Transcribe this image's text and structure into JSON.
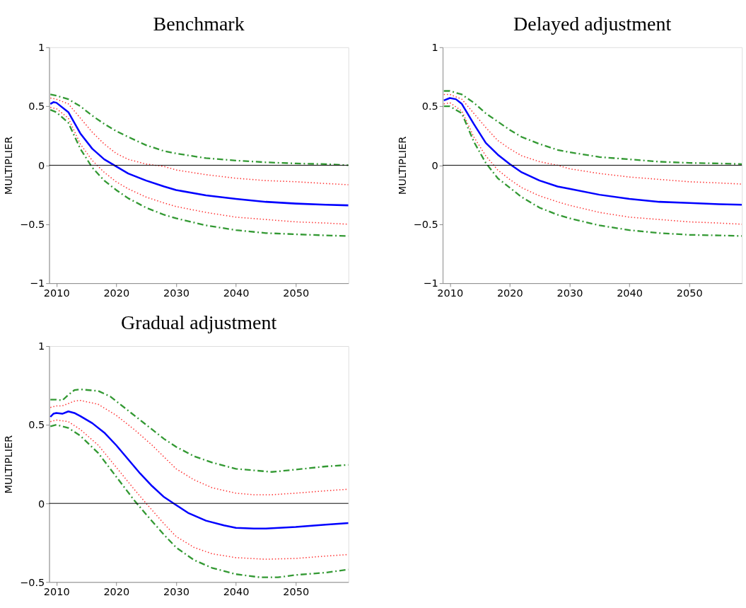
{
  "chart_data": [
    {
      "type": "line",
      "title": "Benchmark",
      "ylabel": "MULTIPLIER",
      "xlim": [
        2008.8,
        2058.8
      ],
      "ylim": [
        -1,
        1
      ],
      "xticks": [
        2010,
        2020,
        2030,
        2040,
        2050
      ],
      "yticks": [
        -1,
        -0.5,
        0,
        0.5,
        1
      ],
      "grid": false,
      "ref_lines": [
        {
          "axis": "y",
          "value": 0,
          "color": "#000000"
        }
      ],
      "series": [
        {
          "color": "#339933",
          "line_style": "dashed",
          "x": [
            2009,
            2010,
            2012,
            2014,
            2016,
            2018,
            2020,
            2022,
            2025,
            2028,
            2030,
            2035,
            2040,
            2045,
            2050,
            2055,
            2058.8
          ],
          "values": [
            0.6,
            0.59,
            0.56,
            0.5,
            0.42,
            0.35,
            0.29,
            0.24,
            0.17,
            0.12,
            0.1,
            0.06,
            0.04,
            0.025,
            0.015,
            0.01,
            0.0
          ]
        },
        {
          "color": "#ff3333",
          "line_style": "dotted",
          "x": [
            2009,
            2010,
            2012,
            2014,
            2016,
            2018,
            2020,
            2022,
            2025,
            2028,
            2030,
            2035,
            2040,
            2045,
            2050,
            2055,
            2058.8
          ],
          "values": [
            0.57,
            0.56,
            0.52,
            0.4,
            0.28,
            0.18,
            0.1,
            0.05,
            0.01,
            -0.01,
            -0.04,
            -0.08,
            -0.11,
            -0.13,
            -0.14,
            -0.155,
            -0.165
          ]
        },
        {
          "color": "#0000ff",
          "line_style": "solid",
          "x": [
            2009,
            2009.5,
            2010,
            2012,
            2014,
            2016,
            2018,
            2020,
            2022,
            2025,
            2028,
            2030,
            2035,
            2040,
            2045,
            2050,
            2055,
            2058.8
          ],
          "values": [
            0.52,
            0.535,
            0.53,
            0.45,
            0.27,
            0.14,
            0.05,
            -0.01,
            -0.07,
            -0.13,
            -0.18,
            -0.21,
            -0.255,
            -0.285,
            -0.31,
            -0.325,
            -0.335,
            -0.34
          ]
        },
        {
          "color": "#ff3333",
          "line_style": "dotted",
          "x": [
            2009,
            2010,
            2012,
            2014,
            2016,
            2018,
            2020,
            2022,
            2025,
            2028,
            2030,
            2035,
            2040,
            2045,
            2050,
            2055,
            2058.8
          ],
          "values": [
            0.49,
            0.48,
            0.4,
            0.18,
            0.04,
            -0.06,
            -0.14,
            -0.2,
            -0.27,
            -0.32,
            -0.35,
            -0.4,
            -0.44,
            -0.46,
            -0.48,
            -0.49,
            -0.5
          ]
        },
        {
          "color": "#339933",
          "line_style": "dashed",
          "x": [
            2009,
            2010,
            2012,
            2014,
            2016,
            2018,
            2020,
            2022,
            2025,
            2028,
            2030,
            2035,
            2040,
            2045,
            2050,
            2055,
            2058.8
          ],
          "values": [
            0.47,
            0.45,
            0.36,
            0.14,
            -0.02,
            -0.13,
            -0.21,
            -0.28,
            -0.36,
            -0.42,
            -0.45,
            -0.51,
            -0.55,
            -0.575,
            -0.585,
            -0.595,
            -0.6
          ]
        }
      ]
    },
    {
      "type": "line",
      "title": "Delayed adjustment",
      "ylabel": "MULTIPLIER",
      "xlim": [
        2008.8,
        2058.8
      ],
      "ylim": [
        -1,
        1
      ],
      "xticks": [
        2010,
        2020,
        2030,
        2040,
        2050
      ],
      "yticks": [
        -1,
        -0.5,
        0,
        0.5,
        1
      ],
      "grid": false,
      "ref_lines": [
        {
          "axis": "y",
          "value": 0,
          "color": "#000000"
        }
      ],
      "series": [
        {
          "color": "#339933",
          "line_style": "dashed",
          "x": [
            2009,
            2010,
            2012,
            2014,
            2016,
            2018,
            2020,
            2022,
            2025,
            2028,
            2030,
            2035,
            2040,
            2045,
            2050,
            2055,
            2058.8
          ],
          "values": [
            0.63,
            0.63,
            0.6,
            0.53,
            0.44,
            0.37,
            0.3,
            0.24,
            0.18,
            0.13,
            0.11,
            0.07,
            0.05,
            0.03,
            0.02,
            0.015,
            0.01
          ]
        },
        {
          "color": "#ff3333",
          "line_style": "dotted",
          "x": [
            2009,
            2010,
            2012,
            2014,
            2016,
            2018,
            2020,
            2022,
            2025,
            2028,
            2030,
            2035,
            2040,
            2045,
            2050,
            2055,
            2058.8
          ],
          "values": [
            0.6,
            0.6,
            0.56,
            0.44,
            0.32,
            0.21,
            0.14,
            0.08,
            0.03,
            0.0,
            -0.03,
            -0.07,
            -0.1,
            -0.12,
            -0.14,
            -0.15,
            -0.16
          ]
        },
        {
          "color": "#0000ff",
          "line_style": "solid",
          "x": [
            2009,
            2010,
            2011,
            2012,
            2014,
            2016,
            2018,
            2020,
            2022,
            2025,
            2028,
            2030,
            2035,
            2040,
            2045,
            2050,
            2055,
            2058.8
          ],
          "values": [
            0.55,
            0.57,
            0.56,
            0.52,
            0.35,
            0.19,
            0.09,
            0.01,
            -0.06,
            -0.13,
            -0.18,
            -0.2,
            -0.25,
            -0.285,
            -0.31,
            -0.32,
            -0.33,
            -0.335
          ]
        },
        {
          "color": "#ff3333",
          "line_style": "dotted",
          "x": [
            2009,
            2010,
            2012,
            2014,
            2016,
            2018,
            2020,
            2022,
            2025,
            2028,
            2030,
            2035,
            2040,
            2045,
            2050,
            2055,
            2058.8
          ],
          "values": [
            0.52,
            0.53,
            0.46,
            0.24,
            0.08,
            -0.04,
            -0.12,
            -0.19,
            -0.26,
            -0.31,
            -0.34,
            -0.4,
            -0.44,
            -0.46,
            -0.48,
            -0.49,
            -0.5
          ]
        },
        {
          "color": "#339933",
          "line_style": "dashed",
          "x": [
            2009,
            2010,
            2012,
            2014,
            2016,
            2018,
            2020,
            2022,
            2025,
            2028,
            2030,
            2035,
            2040,
            2045,
            2050,
            2055,
            2058.8
          ],
          "values": [
            0.5,
            0.5,
            0.44,
            0.2,
            0.02,
            -0.11,
            -0.19,
            -0.27,
            -0.36,
            -0.42,
            -0.45,
            -0.51,
            -0.55,
            -0.575,
            -0.59,
            -0.595,
            -0.6
          ]
        }
      ]
    },
    {
      "type": "line",
      "title": "Gradual adjustment",
      "ylabel": "MULTIPLIER",
      "xlim": [
        2008.8,
        2058.8
      ],
      "ylim": [
        -0.5,
        1
      ],
      "xticks": [
        2010,
        2020,
        2030,
        2040,
        2050
      ],
      "yticks": [
        -0.5,
        0,
        0.5,
        1
      ],
      "grid": false,
      "ref_lines": [
        {
          "axis": "y",
          "value": 0,
          "color": "#000000"
        }
      ],
      "series": [
        {
          "color": "#339933",
          "line_style": "dashed",
          "x": [
            2009,
            2010,
            2011,
            2012,
            2013,
            2014,
            2017,
            2019,
            2022,
            2025,
            2028,
            2030,
            2033,
            2036,
            2040,
            2043,
            2046,
            2050,
            2055,
            2058.8
          ],
          "values": [
            0.66,
            0.66,
            0.655,
            0.69,
            0.72,
            0.725,
            0.715,
            0.68,
            0.59,
            0.5,
            0.41,
            0.36,
            0.3,
            0.26,
            0.22,
            0.21,
            0.2,
            0.215,
            0.235,
            0.245
          ]
        },
        {
          "color": "#ff3333",
          "line_style": "dotted",
          "x": [
            2009,
            2010,
            2011,
            2013,
            2014,
            2017,
            2020,
            2023,
            2026,
            2030,
            2033,
            2036,
            2040,
            2043,
            2046,
            2050,
            2055,
            2058.8
          ],
          "values": [
            0.61,
            0.62,
            0.62,
            0.65,
            0.655,
            0.63,
            0.56,
            0.47,
            0.37,
            0.22,
            0.15,
            0.1,
            0.065,
            0.055,
            0.055,
            0.065,
            0.08,
            0.09
          ]
        },
        {
          "color": "#0000ff",
          "line_style": "solid",
          "x": [
            2009,
            2009.5,
            2010,
            2011,
            2012,
            2013,
            2014,
            2016,
            2018,
            2020,
            2022,
            2024,
            2026,
            2028,
            2030,
            2032,
            2035,
            2038,
            2040,
            2043,
            2045,
            2050,
            2055,
            2058.8
          ],
          "values": [
            0.55,
            0.57,
            0.575,
            0.57,
            0.585,
            0.575,
            0.555,
            0.51,
            0.45,
            0.37,
            0.28,
            0.19,
            0.11,
            0.04,
            -0.01,
            -0.06,
            -0.11,
            -0.14,
            -0.155,
            -0.16,
            -0.16,
            -0.15,
            -0.135,
            -0.125
          ]
        },
        {
          "color": "#ff3333",
          "line_style": "dotted",
          "x": [
            2009,
            2010,
            2012,
            2014,
            2017,
            2020,
            2023,
            2025,
            2028,
            2030,
            2033,
            2036,
            2040,
            2045,
            2050,
            2055,
            2058.8
          ],
          "values": [
            0.52,
            0.53,
            0.52,
            0.47,
            0.37,
            0.23,
            0.09,
            0.0,
            -0.13,
            -0.21,
            -0.28,
            -0.32,
            -0.345,
            -0.355,
            -0.35,
            -0.335,
            -0.325
          ]
        },
        {
          "color": "#339933",
          "line_style": "dashed",
          "x": [
            2009,
            2010,
            2012,
            2014,
            2017,
            2020,
            2023,
            2025,
            2028,
            2030,
            2033,
            2036,
            2040,
            2044,
            2047,
            2050,
            2055,
            2058.8
          ],
          "values": [
            0.49,
            0.5,
            0.48,
            0.43,
            0.32,
            0.17,
            0.02,
            -0.07,
            -0.2,
            -0.28,
            -0.36,
            -0.41,
            -0.45,
            -0.47,
            -0.47,
            -0.455,
            -0.44,
            -0.42
          ]
        }
      ]
    }
  ]
}
